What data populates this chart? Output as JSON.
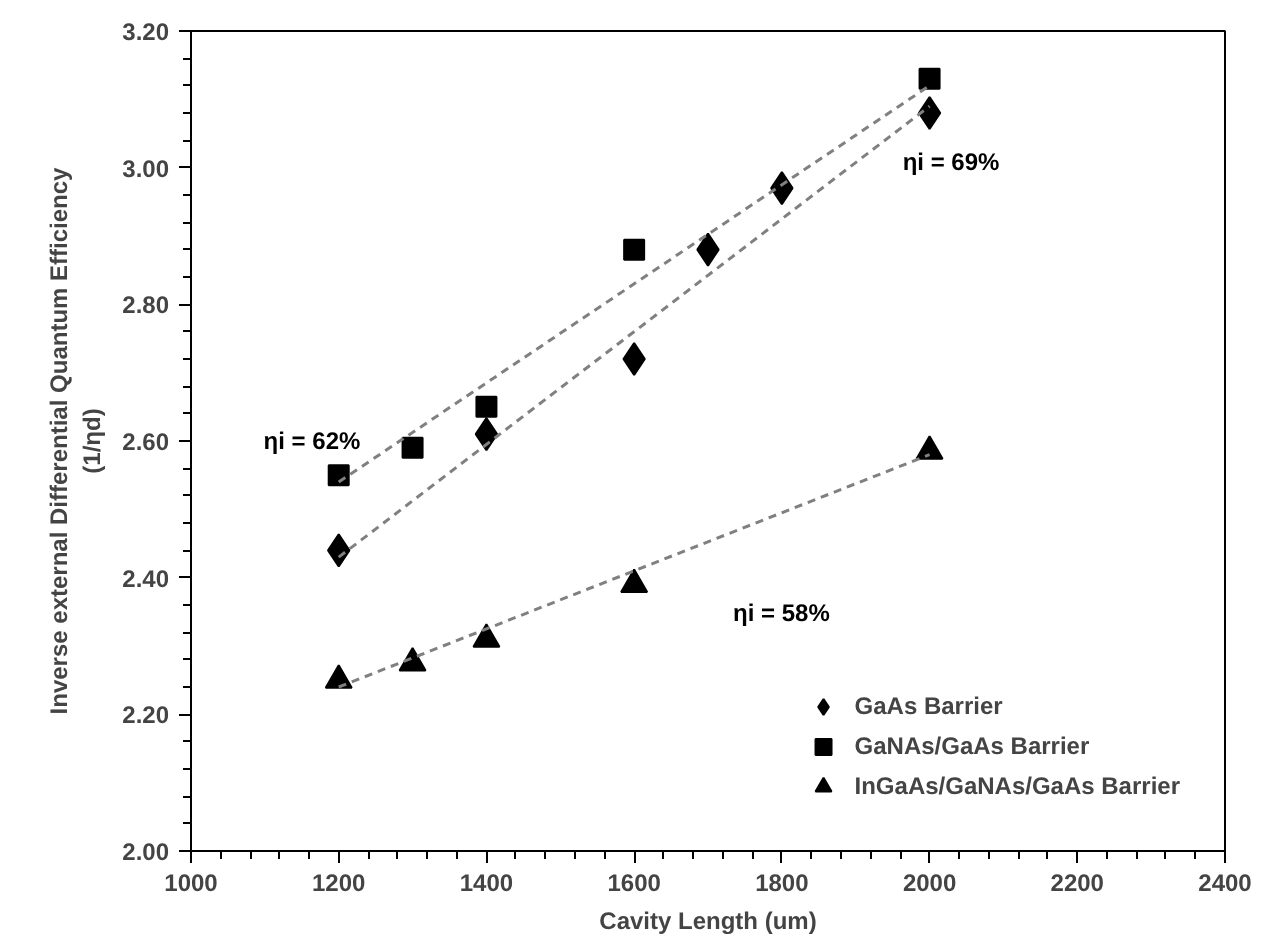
{
  "chart_data": {
    "type": "scatter",
    "xlabel": "Cavity Length (um)",
    "ylabel": "Inverse external Differential Quantum Efficiency\n(1/ηd)",
    "xlim": [
      1000,
      2400
    ],
    "xticks": [
      1000,
      1200,
      1400,
      1600,
      1800,
      2000,
      2200,
      2400
    ],
    "ylim": [
      2.0,
      3.2
    ],
    "yticks": [
      {
        "value": 2.0,
        "label": "2.00"
      },
      {
        "value": 2.2,
        "label": "2.20"
      },
      {
        "value": 2.4,
        "label": "2.40"
      },
      {
        "value": 2.6,
        "label": "2.60"
      },
      {
        "value": 2.8,
        "label": "2.80"
      },
      {
        "value": 3.0,
        "label": "3.00"
      },
      {
        "value": 3.2,
        "label": "3.20"
      }
    ],
    "grid": false,
    "legend": "bottom right",
    "series": [
      {
        "name": "GaAs Barrier",
        "color": "#000000",
        "marker": "diamond",
        "x": [
          1200,
          1400,
          1600,
          1700,
          1800,
          2000
        ],
        "values": [
          2.44,
          2.61,
          2.72,
          2.88,
          2.97,
          3.08
        ]
      },
      {
        "name": "GaNAs/GaAs Barrier",
        "color": "#000000",
        "marker": "square",
        "x": [
          1200,
          1300,
          1400,
          1600,
          2000
        ],
        "values": [
          2.55,
          2.59,
          2.65,
          2.88,
          3.13
        ]
      },
      {
        "name": "InGaAs/GaNAs/GaAs Barrier",
        "color": "#000000",
        "marker": "triangle",
        "x": [
          1200,
          1300,
          1400,
          1600,
          2000
        ],
        "values": [
          2.25,
          2.275,
          2.31,
          2.39,
          2.585
        ]
      },
      {
        "type": "line",
        "color": "#808080",
        "line_style": "dashed",
        "marker": "none",
        "x": [
          1200,
          2000
        ],
        "values": [
          2.43,
          3.09
        ]
      },
      {
        "type": "line",
        "color": "#808080",
        "line_style": "dashed",
        "marker": "none",
        "x": [
          1200,
          2000
        ],
        "values": [
          2.54,
          3.12
        ]
      },
      {
        "type": "line",
        "color": "#808080",
        "line_style": "dashed",
        "marker": "none",
        "x": [
          1200,
          2000
        ],
        "values": [
          2.24,
          2.58
        ]
      }
    ],
    "annotations": [
      "ηi = 62%",
      "ηi = 69%",
      "ηi = 58%"
    ]
  }
}
